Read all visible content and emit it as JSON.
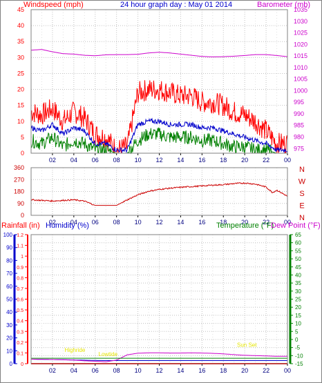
{
  "colors": {
    "wind": "#ff0000",
    "wind_avg": "#0000cc",
    "wind_low": "#008000",
    "barometer": "#cc00cc",
    "direction": "#cc0000",
    "rain": "#ff0000",
    "humidity": "#0000cc",
    "temperature": "#008000",
    "dewpoint": "#cc00cc",
    "annotation": "#e6e600",
    "grid": "#c0c0c0"
  },
  "header": {
    "windspeed_label": "Windspeed (mph)",
    "title": "24 hour graph day : May 01 2014",
    "barometer_label": "Barometer (mb)"
  },
  "x_ticks": [
    "02",
    "04",
    "06",
    "08",
    "10",
    "12",
    "14",
    "16",
    "18",
    "20",
    "22",
    "00"
  ],
  "chart_data": [
    {
      "type": "line",
      "name": "wind-barometer",
      "x": [
        0,
        1,
        2,
        3,
        4,
        5,
        6,
        7,
        8,
        9,
        10,
        11,
        12,
        13,
        14,
        15,
        16,
        17,
        18,
        19,
        20,
        21,
        22,
        23,
        24
      ],
      "y_left": {
        "label": "Windspeed (mph)",
        "ticks": [
          0,
          5,
          10,
          15,
          20,
          25,
          30,
          35,
          40,
          45
        ],
        "range": [
          0,
          45
        ]
      },
      "y_right": {
        "label": "Barometer (mb)",
        "ticks": [
          975,
          980,
          985,
          990,
          995,
          1000,
          1005,
          1010,
          1015,
          1020,
          1025,
          1030,
          1035
        ],
        "range": [
          973,
          1035
        ]
      },
      "series": [
        {
          "key": "gust",
          "values": [
            13,
            12,
            14,
            10,
            13,
            11,
            6,
            5,
            1,
            2,
            19,
            20,
            20,
            19,
            18,
            18,
            16,
            16,
            15,
            13,
            12,
            10,
            7,
            3,
            3
          ]
        },
        {
          "key": "avg",
          "values": [
            8,
            7,
            9,
            6,
            8,
            7,
            3,
            3,
            1,
            1,
            9,
            10,
            10,
            9,
            9,
            9,
            8,
            8,
            7,
            6,
            5,
            4,
            3,
            1,
            1
          ]
        },
        {
          "key": "low",
          "values": [
            4,
            3,
            5,
            2,
            4,
            3,
            1,
            1,
            0,
            0,
            4,
            6,
            6,
            5,
            5,
            5,
            4,
            4,
            3,
            2,
            2,
            1,
            1,
            0,
            0
          ]
        },
        {
          "key": "barometer",
          "values": [
            1017.5,
            1017.8,
            1016.8,
            1016,
            1015.8,
            1015.3,
            1015.1,
            1015.5,
            1015.6,
            1015.6,
            1015.7,
            1016.3,
            1016.6,
            1016.3,
            1015.8,
            1015.3,
            1014.8,
            1014.6,
            1014.7,
            1014.9,
            1015.2,
            1015.6,
            1015.6,
            1015.2,
            1014.7
          ]
        }
      ]
    },
    {
      "type": "line",
      "name": "wind-direction",
      "x": [
        0,
        1,
        2,
        3,
        4,
        5,
        6,
        7,
        8,
        9,
        10,
        11,
        12,
        13,
        14,
        15,
        16,
        17,
        18,
        19,
        20,
        21,
        22,
        22.6,
        23,
        24
      ],
      "y_left": {
        "ticks": [
          0,
          90,
          180,
          270,
          360
        ],
        "range": [
          0,
          360
        ]
      },
      "y_right_labels": [
        "N",
        "W",
        "S",
        "E",
        "N"
      ],
      "series": [
        {
          "key": "direction",
          "values": [
            117,
            113,
            108,
            113,
            117,
            107,
            75,
            75,
            75,
            117,
            155,
            182,
            196,
            205,
            212,
            217,
            222,
            228,
            232,
            240,
            244,
            236,
            214,
            172,
            190,
            144
          ]
        }
      ]
    },
    {
      "type": "line",
      "name": "rain-humidity-temperature",
      "x": [
        0,
        1,
        2,
        3,
        4,
        5,
        6,
        7,
        8,
        9,
        10,
        11,
        12,
        13,
        14,
        15,
        16,
        17,
        18,
        19,
        20,
        21,
        22,
        23,
        24
      ],
      "header_labels": {
        "rain": "Rainfall (in)",
        "humidity": "Humidity (%)",
        "temperature": "Temperature (°F)",
        "dewpoint": "Dew Point (°F)"
      },
      "y_rain": {
        "ticks": [
          0,
          0.1,
          0.2,
          0.3,
          0.4,
          0.5,
          0.6,
          0.7,
          0.8,
          0.9,
          1,
          1.1,
          1.2
        ],
        "range": [
          0,
          1.2
        ]
      },
      "y_humidity": {
        "ticks": [
          0,
          10,
          20,
          30,
          40,
          50,
          60,
          70,
          80,
          90,
          100
        ],
        "range": [
          0,
          100
        ]
      },
      "y_temp": {
        "ticks": [
          -15,
          -10,
          -5,
          0,
          5,
          10,
          15,
          20,
          25,
          30,
          35,
          40,
          45,
          50,
          55,
          60,
          65
        ],
        "range": [
          -15,
          65
        ]
      },
      "series": [
        {
          "key": "rainfall",
          "values": [
            0,
            0,
            0,
            0,
            0,
            0,
            0,
            0,
            0,
            0,
            0,
            0,
            0,
            0,
            0,
            0,
            0,
            0,
            0,
            0,
            0,
            0,
            0,
            0,
            0
          ]
        },
        {
          "key": "temperature",
          "values": [
            -11.6,
            -11.6,
            -11.6,
            -11.6,
            -11.6,
            -11.6,
            -11.6,
            -11.6,
            -11.6,
            -11.6,
            -11.6,
            -11.6,
            -11.6,
            -11.6,
            -11.6,
            -11.6,
            -11.6,
            -11.6,
            -11.6,
            -11.6,
            -11.6,
            -11.6,
            -11.6,
            -11.6,
            -11.6
          ]
        },
        {
          "key": "dewpoint",
          "values": [
            -12.2,
            -12.3,
            -12.4,
            -12.6,
            -12.8,
            -13.2,
            -13.5,
            -13.8,
            -12.8,
            -9.5,
            -8.5,
            -8.3,
            -8.3,
            -8.4,
            -8.4,
            -8.3,
            -8.4,
            -8.6,
            -8.9,
            -9.4,
            -9.8,
            -10.0,
            -10.2,
            -10.4,
            -10.4
          ]
        },
        {
          "key": "humidity",
          "values": [
            3.5,
            3.3,
            3.2,
            3.1,
            2.9,
            2.7,
            2.5,
            2.4,
            2.4,
            2.4,
            2.4,
            2.4,
            2.4,
            2.4,
            2.4,
            2.4,
            2.4,
            2.4,
            2.4,
            2.4,
            2.4,
            2.4,
            2.4,
            2.4,
            2.4
          ]
        }
      ],
      "annotations": [
        {
          "text": "Highride",
          "x": 4.1,
          "y": 9
        },
        {
          "text": "Lowtide",
          "x": 7.2,
          "y": 6
        },
        {
          "text": "Sun Set",
          "x": 20.2,
          "y": 13
        }
      ]
    }
  ]
}
